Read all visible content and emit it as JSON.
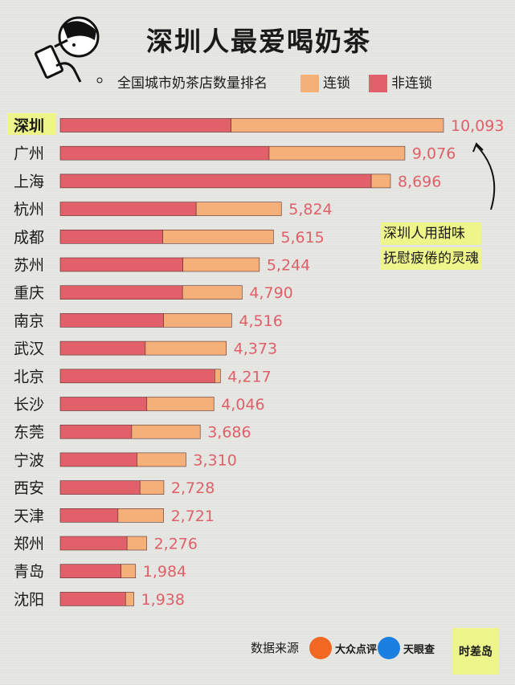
{
  "chart_data": {
    "type": "bar",
    "orientation": "horizontal",
    "stacked": true,
    "title": "深圳人最爱喝奶茶",
    "subtitle": "全国城市奶茶店数量排名",
    "categories": [
      "深圳",
      "广州",
      "上海",
      "杭州",
      "成都",
      "苏州",
      "重庆",
      "南京",
      "武汉",
      "北京",
      "长沙",
      "东莞",
      "宁波",
      "西安",
      "天津",
      "郑州",
      "青岛",
      "沈阳"
    ],
    "series": [
      {
        "name": "非连锁",
        "color": "#e2606a",
        "values": [
          4500,
          5500,
          8190,
          3580,
          2700,
          3230,
          3220,
          2720,
          2240,
          4070,
          2280,
          1880,
          2020,
          2100,
          1520,
          1760,
          1600,
          1720
        ]
      },
      {
        "name": "连锁",
        "color": "#f5b07a",
        "values": [
          5593,
          3576,
          506,
          2244,
          2915,
          2014,
          1570,
          1796,
          2133,
          147,
          1766,
          1806,
          1290,
          628,
          1201,
          516,
          384,
          218
        ]
      }
    ],
    "totals": [
      10093,
      9076,
      8696,
      5824,
      5615,
      5244,
      4790,
      4516,
      4373,
      4217,
      4046,
      3686,
      3310,
      2728,
      2721,
      2276,
      1984,
      1938
    ],
    "total_labels": [
      "10,093",
      "9,076",
      "8,696",
      "5,824",
      "5,615",
      "5,244",
      "4,790",
      "4,516",
      "4,373",
      "4,217",
      "4,046",
      "3,686",
      "3,310",
      "2,728",
      "2,721",
      "2,276",
      "1,984",
      "1,938"
    ],
    "highlight_category": "深圳",
    "xlim": [
      0,
      10093
    ],
    "legend": "top",
    "grid": false
  },
  "annotation": {
    "lines": [
      "深圳人用甜味",
      "抚慰疲倦的灵魂"
    ]
  },
  "footer": {
    "source_label": "数据来源",
    "brands": [
      {
        "name": "大众点评",
        "icon": "dianping-logo-icon",
        "color": "#f26722"
      },
      {
        "name": "天眼查",
        "icon": "tianyancha-logo-icon",
        "color": "#1a7fe0"
      }
    ],
    "badge": "时差岛"
  },
  "mascot": {
    "icon": "milk-tea-drinker-icon"
  },
  "colors": {
    "chain": "#f5b07a",
    "nonchain": "#e2606a",
    "highlight": "#eef58a"
  }
}
